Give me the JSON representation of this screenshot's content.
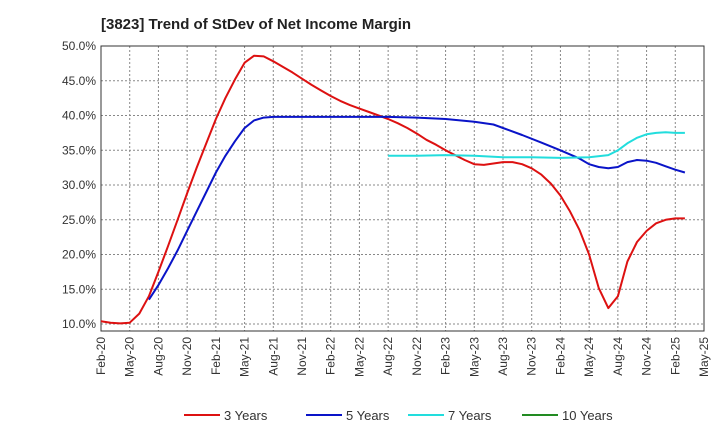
{
  "chart_data": {
    "type": "line",
    "title": "[3823]  Trend of StDev of Net Income Margin",
    "xlabel": "",
    "ylabel": "",
    "x_tick_labels": [
      "Feb-20",
      "May-20",
      "Aug-20",
      "Nov-20",
      "Feb-21",
      "May-21",
      "Aug-21",
      "Nov-21",
      "Feb-22",
      "May-22",
      "Aug-22",
      "Nov-22",
      "Feb-23",
      "May-23",
      "Aug-23",
      "Nov-23",
      "Feb-24",
      "May-24",
      "Aug-24",
      "Nov-24",
      "Feb-25",
      "May-25"
    ],
    "y_tick_labels": [
      "10.0%",
      "15.0%",
      "20.0%",
      "25.0%",
      "30.0%",
      "35.0%",
      "40.0%",
      "45.0%",
      "50.0%"
    ],
    "y_ticks": [
      10,
      15,
      20,
      25,
      30,
      35,
      40,
      45,
      50
    ],
    "ylim": [
      9,
      50
    ],
    "x_range": [
      "2020-02",
      "2025-05"
    ],
    "grid": true,
    "legend_position": "bottom",
    "series": [
      {
        "name": "3 Years",
        "color": "#dd1111",
        "points": [
          [
            "2020-02",
            10.4
          ],
          [
            "2020-03",
            10.2
          ],
          [
            "2020-04",
            10.1
          ],
          [
            "2020-05",
            10.2
          ],
          [
            "2020-06",
            11.5
          ],
          [
            "2020-07",
            14.0
          ],
          [
            "2020-08",
            17.5
          ],
          [
            "2020-09",
            21.2
          ],
          [
            "2020-10",
            25.0
          ],
          [
            "2020-11",
            28.8
          ],
          [
            "2020-12",
            32.5
          ],
          [
            "2021-01",
            36.0
          ],
          [
            "2021-02",
            39.5
          ],
          [
            "2021-03",
            42.5
          ],
          [
            "2021-04",
            45.2
          ],
          [
            "2021-05",
            47.6
          ],
          [
            "2021-06",
            48.6
          ],
          [
            "2021-07",
            48.5
          ],
          [
            "2021-08",
            47.8
          ],
          [
            "2021-09",
            47.0
          ],
          [
            "2021-10",
            46.2
          ],
          [
            "2021-11",
            45.3
          ],
          [
            "2021-12",
            44.4
          ],
          [
            "2022-01",
            43.6
          ],
          [
            "2022-02",
            42.8
          ],
          [
            "2022-03",
            42.1
          ],
          [
            "2022-04",
            41.5
          ],
          [
            "2022-05",
            41.0
          ],
          [
            "2022-06",
            40.5
          ],
          [
            "2022-07",
            40.0
          ],
          [
            "2022-08",
            39.5
          ],
          [
            "2022-09",
            38.9
          ],
          [
            "2022-10",
            38.2
          ],
          [
            "2022-11",
            37.4
          ],
          [
            "2022-12",
            36.5
          ],
          [
            "2023-01",
            35.8
          ],
          [
            "2023-02",
            35.0
          ],
          [
            "2023-03",
            34.3
          ],
          [
            "2023-04",
            33.6
          ],
          [
            "2023-05",
            33.0
          ],
          [
            "2023-06",
            32.9
          ],
          [
            "2023-07",
            33.1
          ],
          [
            "2023-08",
            33.3
          ],
          [
            "2023-09",
            33.3
          ],
          [
            "2023-10",
            33.0
          ],
          [
            "2023-11",
            32.4
          ],
          [
            "2023-12",
            31.5
          ],
          [
            "2024-01",
            30.2
          ],
          [
            "2024-02",
            28.5
          ],
          [
            "2024-03",
            26.2
          ],
          [
            "2024-04",
            23.5
          ],
          [
            "2024-05",
            20.0
          ],
          [
            "2024-06",
            15.2
          ],
          [
            "2024-07",
            12.3
          ],
          [
            "2024-08",
            14.0
          ],
          [
            "2024-09",
            19.0
          ],
          [
            "2024-10",
            21.8
          ],
          [
            "2024-11",
            23.4
          ],
          [
            "2024-12",
            24.5
          ],
          [
            "2025-01",
            25.0
          ],
          [
            "2025-02",
            25.2
          ],
          [
            "2025-03",
            25.2
          ]
        ]
      },
      {
        "name": "5 Years",
        "color": "#0a14c8",
        "points": [
          [
            "2020-07",
            13.5
          ],
          [
            "2020-08",
            15.6
          ],
          [
            "2020-09",
            18.0
          ],
          [
            "2020-10",
            20.6
          ],
          [
            "2020-11",
            23.4
          ],
          [
            "2020-12",
            26.2
          ],
          [
            "2021-01",
            29.0
          ],
          [
            "2021-02",
            31.8
          ],
          [
            "2021-03",
            34.2
          ],
          [
            "2021-04",
            36.3
          ],
          [
            "2021-05",
            38.2
          ],
          [
            "2021-06",
            39.3
          ],
          [
            "2021-07",
            39.7
          ],
          [
            "2021-08",
            39.8
          ],
          [
            "2021-09",
            39.8
          ],
          [
            "2021-10",
            39.8
          ],
          [
            "2021-11",
            39.8
          ],
          [
            "2021-12",
            39.8
          ],
          [
            "2022-02",
            39.8
          ],
          [
            "2022-05",
            39.8
          ],
          [
            "2022-08",
            39.8
          ],
          [
            "2022-11",
            39.7
          ],
          [
            "2023-02",
            39.5
          ],
          [
            "2023-05",
            39.1
          ],
          [
            "2023-07",
            38.7
          ],
          [
            "2023-08",
            38.2
          ],
          [
            "2023-10",
            37.2
          ],
          [
            "2023-12",
            36.1
          ],
          [
            "2024-02",
            35.0
          ],
          [
            "2024-04",
            33.8
          ],
          [
            "2024-05",
            33.0
          ],
          [
            "2024-06",
            32.6
          ],
          [
            "2024-07",
            32.4
          ],
          [
            "2024-08",
            32.6
          ],
          [
            "2024-09",
            33.3
          ],
          [
            "2024-10",
            33.6
          ],
          [
            "2024-11",
            33.5
          ],
          [
            "2024-12",
            33.2
          ],
          [
            "2025-01",
            32.7
          ],
          [
            "2025-02",
            32.2
          ],
          [
            "2025-03",
            31.8
          ]
        ]
      },
      {
        "name": "7 Years",
        "color": "#22dddd",
        "points": [
          [
            "2022-08",
            34.2
          ],
          [
            "2022-11",
            34.2
          ],
          [
            "2023-02",
            34.3
          ],
          [
            "2023-05",
            34.2
          ],
          [
            "2023-08",
            34.0
          ],
          [
            "2023-11",
            34.0
          ],
          [
            "2024-02",
            33.9
          ],
          [
            "2024-05",
            34.0
          ],
          [
            "2024-07",
            34.3
          ],
          [
            "2024-08",
            35.0
          ],
          [
            "2024-09",
            36.0
          ],
          [
            "2024-10",
            36.8
          ],
          [
            "2024-11",
            37.3
          ],
          [
            "2024-12",
            37.5
          ],
          [
            "2025-01",
            37.6
          ],
          [
            "2025-02",
            37.5
          ],
          [
            "2025-03",
            37.5
          ]
        ]
      },
      {
        "name": "10 Years",
        "color": "#228b22",
        "points": []
      }
    ]
  }
}
